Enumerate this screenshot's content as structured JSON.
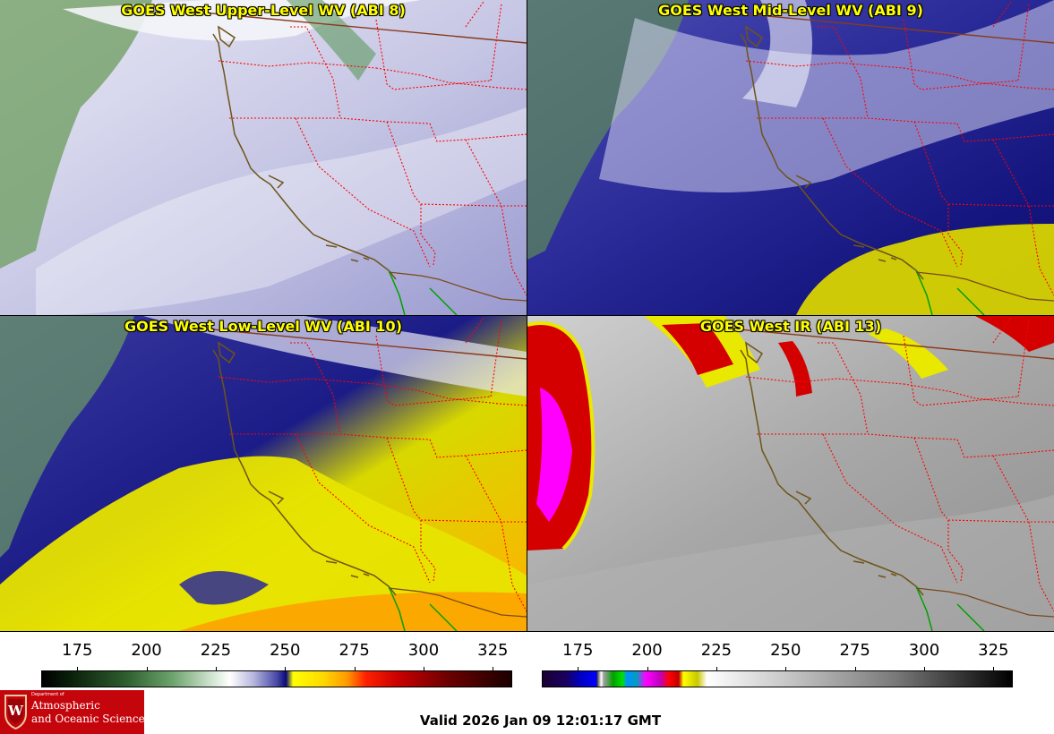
{
  "panels": [
    {
      "title": "GOES West Upper-Level WV (ABI 8)",
      "palette": "wv",
      "moisture": "upper"
    },
    {
      "title": "GOES West Mid-Level WV (ABI 9)",
      "palette": "wv",
      "moisture": "mid"
    },
    {
      "title": "GOES West Low-Level WV (ABI 10)",
      "palette": "wv",
      "moisture": "low"
    },
    {
      "title": "GOES West IR (ABI 13)",
      "palette": "ir",
      "moisture": "ir"
    }
  ],
  "colorbars": {
    "left": {
      "ticks": [
        "175",
        "200",
        "225",
        "250",
        "275",
        "300",
        "325"
      ],
      "min": 162,
      "max": 332
    },
    "right": {
      "ticks": [
        "175",
        "200",
        "225",
        "250",
        "275",
        "300",
        "325"
      ],
      "min": 162,
      "max": 332
    }
  },
  "footer": {
    "valid_text": "Valid 2026 Jan 09 12:01:17 GMT"
  },
  "logo": {
    "dept": "Department of",
    "line1": "Atmospheric",
    "line2": "and Oceanic Sciences",
    "crest_letter": "W"
  },
  "colors": {
    "state_borders": "#ff0000",
    "coastline": "#7a5a1a",
    "mexico_coast": "#00a000",
    "intl_border": "#7a3a1a",
    "logo_bg": "#c5050c",
    "title_text": "#ffff00"
  }
}
